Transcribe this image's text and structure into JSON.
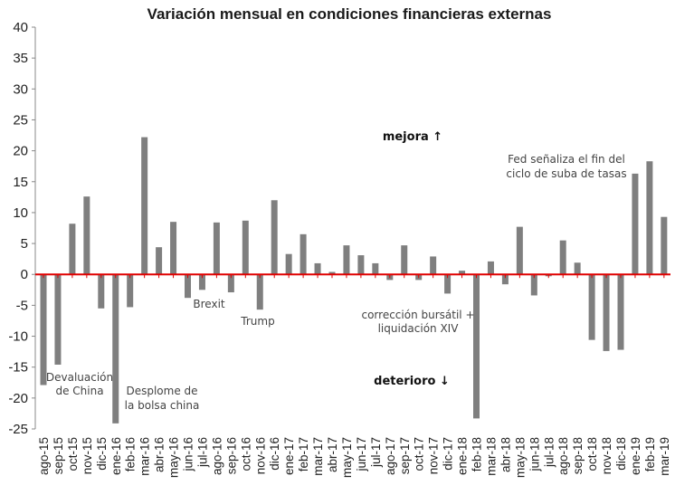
{
  "chart_data": {
    "type": "bar",
    "title": "Variación mensual en condiciones financieras externas",
    "xlabel": "",
    "ylabel": "",
    "ylim": [
      -25,
      40
    ],
    "yticks": [
      40,
      35,
      30,
      25,
      20,
      15,
      10,
      5,
      0,
      -5,
      -10,
      -15,
      -20,
      -25
    ],
    "grid": false,
    "bar_color": "#7f7f7f",
    "zero_line_color": "#e00000",
    "categories": [
      "ago-15",
      "sep-15",
      "oct-15",
      "nov-15",
      "dic-15",
      "ene-16",
      "feb-16",
      "mar-16",
      "abr-16",
      "may-16",
      "jun-16",
      "jul-16",
      "ago-16",
      "sep-16",
      "oct-16",
      "nov-16",
      "dic-16",
      "ene-17",
      "feb-17",
      "mar-17",
      "abr-17",
      "may-17",
      "jun-17",
      "jul-17",
      "ago-17",
      "sep-17",
      "oct-17",
      "nov-17",
      "dic-17",
      "ene-18",
      "feb-18",
      "mar-18",
      "abr-18",
      "may-18",
      "jun-18",
      "jul-18",
      "ago-18",
      "sep-18",
      "oct-18",
      "nov-18",
      "dic-18",
      "ene-19",
      "feb-19",
      "mar-19"
    ],
    "values": [
      -17.9,
      -14.6,
      8.2,
      12.6,
      -5.5,
      -24.1,
      -5.3,
      22.2,
      4.4,
      8.5,
      -3.8,
      -2.5,
      8.4,
      -2.9,
      8.7,
      -5.7,
      12.0,
      3.3,
      6.5,
      1.8,
      0.4,
      4.7,
      3.1,
      1.8,
      -0.9,
      4.7,
      -0.9,
      2.9,
      -3.1,
      0.6,
      -23.3,
      2.1,
      -1.6,
      7.7,
      -3.4,
      -0.3,
      5.5,
      1.9,
      -10.6,
      -12.4,
      -12.2,
      16.3,
      18.3,
      9.3
    ],
    "annotations": [
      {
        "id": "devaluacion",
        "lines": [
          "Devaluación",
          "de China"
        ]
      },
      {
        "id": "desplome",
        "lines": [
          "Desplome de",
          "la bolsa china"
        ]
      },
      {
        "id": "brexit",
        "lines": [
          "Brexit"
        ]
      },
      {
        "id": "trump",
        "lines": [
          "Trump"
        ]
      },
      {
        "id": "correccion",
        "lines": [
          "corrección bursátil +",
          "liquidación XIV"
        ]
      },
      {
        "id": "fed",
        "lines": [
          "Fed señaliza el fin del",
          "ciclo de suba de tasas"
        ]
      },
      {
        "id": "mejora",
        "lines": [
          "mejora ↑"
        ],
        "bold": true
      },
      {
        "id": "deterioro",
        "lines": [
          "deterioro ↓"
        ],
        "bold": true
      }
    ]
  }
}
